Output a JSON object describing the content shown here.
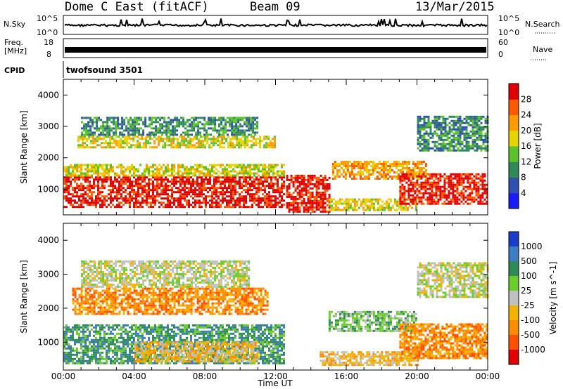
{
  "header": {
    "station": "Dome C East (fitACF)",
    "beam": "Beam 09",
    "date": "13/Mar/2015"
  },
  "aux_panels": {
    "nsky_label": "N.Sky",
    "nsky_ticks": [
      "10^5",
      "10^0"
    ],
    "nsearch_label": "N.Search",
    "freq_label_1": "Freq.",
    "freq_label_2": "[MHz]",
    "freq_ticks": [
      "18",
      "8"
    ],
    "nave_label": "Nave",
    "nave_ticks": [
      "60",
      "0"
    ],
    "cpid_label": "CPID",
    "cpid_value": "twofsound 3501"
  },
  "chart_data": [
    {
      "type": "heatmap",
      "panel": "power",
      "ylabel": "Slant Range [km]",
      "xlabel": "Time UT",
      "ylim": [
        180,
        4500
      ],
      "yticks": [
        "1000",
        "2000",
        "3000",
        "4000"
      ],
      "xticks": [
        "00:00",
        "04:00",
        "08:00",
        "12:00",
        "16:00",
        "20:00",
        "00:00"
      ],
      "colorbar_label": "Power [dB]",
      "colorbar_ticks": [
        "4",
        "8",
        "12",
        "16",
        "20",
        "24",
        "28"
      ],
      "colors": [
        "#1a1aff",
        "#3050b0",
        "#2e8b57",
        "#5cc22a",
        "#e8d200",
        "#ff9a00",
        "#ff5a00",
        "#e00000"
      ],
      "regions": [
        {
          "t0": 0.0,
          "t1": 12.5,
          "r0": 400,
          "r1": 1400,
          "level": 7
        },
        {
          "t0": 0.0,
          "t1": 12.5,
          "r0": 1400,
          "r1": 1800,
          "level": 4
        },
        {
          "t0": 0.8,
          "t1": 12.0,
          "r0": 2300,
          "r1": 2700,
          "level": 4
        },
        {
          "t0": 1.0,
          "t1": 11.0,
          "r0": 2700,
          "r1": 3300,
          "level": 2
        },
        {
          "t0": 12.6,
          "t1": 15.0,
          "r0": 250,
          "r1": 1400,
          "level": 7
        },
        {
          "t0": 15.2,
          "t1": 20.5,
          "r0": 1300,
          "r1": 1900,
          "level": 5
        },
        {
          "t0": 15.0,
          "t1": 20.0,
          "r0": 300,
          "r1": 700,
          "level": 4
        },
        {
          "t0": 19.0,
          "t1": 24.0,
          "r0": 500,
          "r1": 1500,
          "level": 7
        },
        {
          "t0": 20.0,
          "t1": 24.0,
          "r0": 2200,
          "r1": 3300,
          "level": 2
        }
      ]
    },
    {
      "type": "heatmap",
      "panel": "velocity",
      "ylabel": "Slant Range [km]",
      "xlabel": "Time UT",
      "ylim": [
        180,
        4500
      ],
      "yticks": [
        "1000",
        "2000",
        "3000",
        "4000"
      ],
      "xticks": [
        "00:00",
        "04:00",
        "08:00",
        "12:00",
        "16:00",
        "20:00",
        "00:00"
      ],
      "colorbar_label": "Velocity [m s^-1]",
      "colorbar_ticks": [
        "1000",
        "500",
        "100",
        "25",
        "-25",
        "-100",
        "-500",
        "-1000"
      ],
      "colors": [
        "#1a3ccc",
        "#3c7dc4",
        "#2e8b57",
        "#6acd2a",
        "#c0c0c0",
        "#f2b400",
        "#ff8c00",
        "#ff5000",
        "#e00000"
      ],
      "regions": [
        {
          "t0": 0.0,
          "t1": 12.5,
          "r0": 350,
          "r1": 1500,
          "level": 2
        },
        {
          "t0": 4.0,
          "t1": 11.0,
          "r0": 400,
          "r1": 1000,
          "level": 5
        },
        {
          "t0": 0.5,
          "t1": 11.5,
          "r0": 1800,
          "r1": 2600,
          "level": 6
        },
        {
          "t0": 1.0,
          "t1": 10.5,
          "r0": 2600,
          "r1": 3400,
          "level": 4
        },
        {
          "t0": 15.0,
          "t1": 20.0,
          "r0": 1300,
          "r1": 1900,
          "level": 3
        },
        {
          "t0": 14.5,
          "t1": 20.0,
          "r0": 300,
          "r1": 700,
          "level": 5
        },
        {
          "t0": 19.0,
          "t1": 24.0,
          "r0": 500,
          "r1": 1500,
          "level": 6
        },
        {
          "t0": 20.0,
          "t1": 24.0,
          "r0": 2300,
          "r1": 3300,
          "level": 4
        }
      ]
    }
  ]
}
